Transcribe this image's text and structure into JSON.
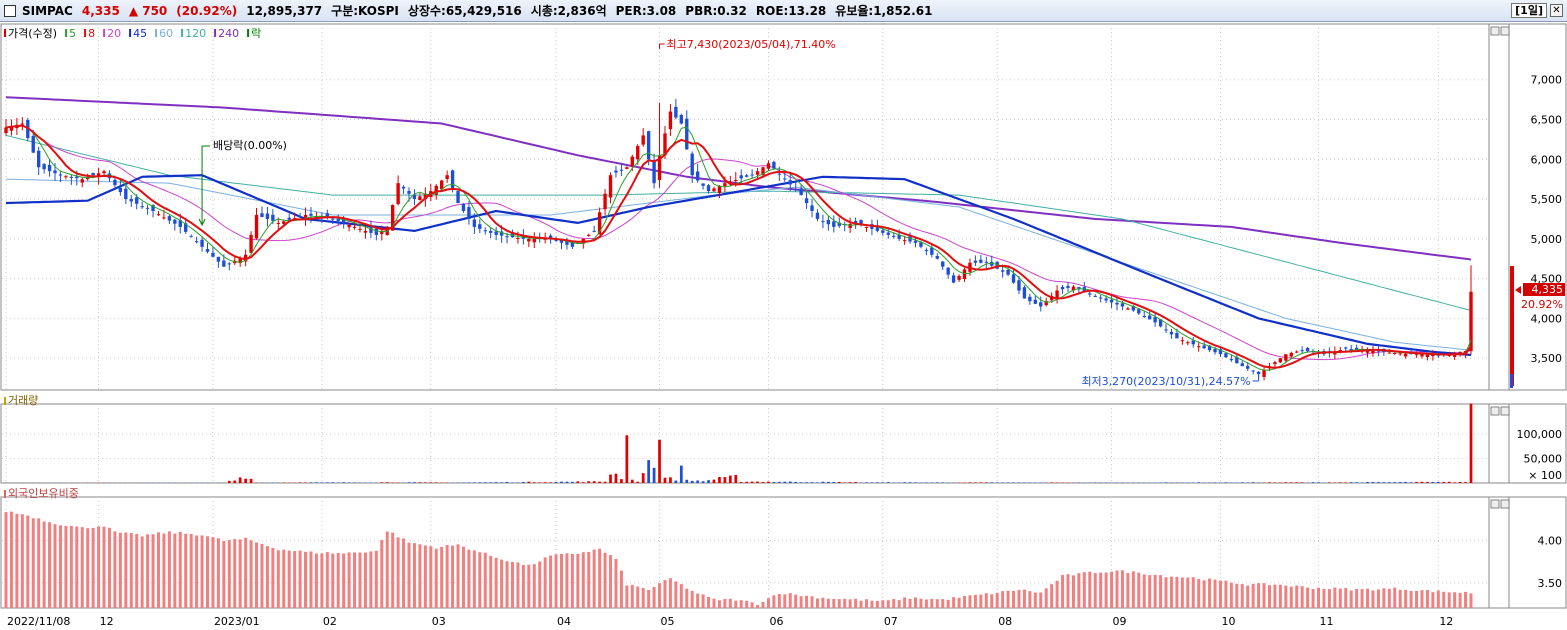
{
  "header": {
    "name": "SIMPAC",
    "price": "4,335",
    "change": "▲ 750",
    "change_pct": "(20.92%)",
    "volume": "12,895,377",
    "market": "구분:KOSPI",
    "shares": "상장수:65,429,516",
    "mcap": "시총:2,836억",
    "per": "PER:3.08",
    "pbr": "PBR:0.32",
    "roe": "ROE:13.28",
    "reserve": "유보율:1,852.61",
    "period": "[1일]"
  },
  "colors": {
    "up": "#e00000",
    "down": "#1c4fd6",
    "ma5": "#2aa02a",
    "ma8": "#e01010",
    "ma20": "#cc44cc",
    "ma45": "#1030c8",
    "ma60": "#7ab0e0",
    "ma120": "#40b0a0",
    "ma240": "#8030c0",
    "foreign_bar": "#f08080",
    "grid": "#d0d0d0"
  },
  "legend": {
    "price_label": "가격(수정)",
    "items": [
      {
        "label": "5",
        "color": "#2aa02a"
      },
      {
        "label": "8",
        "color": "#e01010"
      },
      {
        "label": "20",
        "color": "#cc44cc"
      },
      {
        "label": "45",
        "color": "#1030c8"
      },
      {
        "label": "60",
        "color": "#7ab0e0"
      },
      {
        "label": "120",
        "color": "#40b0a0"
      },
      {
        "label": "240",
        "color": "#8030c0"
      },
      {
        "label": "락",
        "color": "#008000"
      }
    ],
    "volume_label": "거래량",
    "foreign_label": "외국인보유비중"
  },
  "annotations": {
    "high": "최고7,430(2023/05/04),71.40%",
    "low": "최저3,270(2023/10/31),24.57%",
    "dividend": "배당락(0.00%)",
    "last_price": "4,335",
    "last_pct": "20.92%"
  },
  "chart_data": {
    "type": "candlestick",
    "price_axis": {
      "ticks": [
        "7,000",
        "6,500",
        "6,000",
        "5,500",
        "5,000",
        "4,500",
        "4,000",
        "3,500"
      ],
      "values": [
        7000,
        6500,
        6000,
        5500,
        5000,
        4500,
        4000,
        3500
      ],
      "range": [
        3100,
        7600
      ]
    },
    "volume_axis": {
      "ticks": [
        "100,000",
        "50,000",
        "× 100"
      ],
      "values": [
        1000,
        500,
        0
      ],
      "range": [
        0,
        1450
      ]
    },
    "foreign_axis": {
      "ticks": [
        "4.00",
        "3.50"
      ],
      "values": [
        4.0,
        3.5
      ],
      "range": [
        3.2,
        4.4
      ]
    },
    "x_ticks": [
      {
        "label": "2022/11/08",
        "i": 0
      },
      {
        "label": "12",
        "i": 17
      },
      {
        "label": "2023/01",
        "i": 38
      },
      {
        "label": "02",
        "i": 58
      },
      {
        "label": "03",
        "i": 78
      },
      {
        "label": "04",
        "i": 101
      },
      {
        "label": "05",
        "i": 120
      },
      {
        "label": "06",
        "i": 140
      },
      {
        "label": "07",
        "i": 161
      },
      {
        "label": "08",
        "i": 182
      },
      {
        "label": "09",
        "i": 203
      },
      {
        "label": "10",
        "i": 223
      },
      {
        "label": "11",
        "i": 241
      },
      {
        "label": "12",
        "i": 263
      }
    ],
    "price_anchors": [
      [
        0,
        6400
      ],
      [
        3,
        6450
      ],
      [
        6,
        5900
      ],
      [
        10,
        5800
      ],
      [
        14,
        5750
      ],
      [
        18,
        5850
      ],
      [
        22,
        5500
      ],
      [
        27,
        5350
      ],
      [
        32,
        5150
      ],
      [
        36,
        4900
      ],
      [
        40,
        4650
      ],
      [
        44,
        4800
      ],
      [
        46,
        5300
      ],
      [
        50,
        5200
      ],
      [
        55,
        5300
      ],
      [
        60,
        5250
      ],
      [
        64,
        5150
      ],
      [
        68,
        5050
      ],
      [
        70,
        5150
      ],
      [
        72,
        5700
      ],
      [
        75,
        5500
      ],
      [
        78,
        5600
      ],
      [
        81,
        5800
      ],
      [
        83,
        5450
      ],
      [
        86,
        5150
      ],
      [
        90,
        5050
      ],
      [
        95,
        5000
      ],
      [
        100,
        5000
      ],
      [
        104,
        4900
      ],
      [
        108,
        5100
      ],
      [
        111,
        5800
      ],
      [
        114,
        5900
      ],
      [
        117,
        6300
      ],
      [
        119,
        5700
      ],
      [
        120,
        6050
      ],
      [
        122,
        6600
      ],
      [
        124,
        6450
      ],
      [
        126,
        5800
      ],
      [
        129,
        5600
      ],
      [
        132,
        5700
      ],
      [
        137,
        5800
      ],
      [
        140,
        5950
      ],
      [
        143,
        5750
      ],
      [
        146,
        5550
      ],
      [
        149,
        5250
      ],
      [
        152,
        5150
      ],
      [
        156,
        5200
      ],
      [
        160,
        5100
      ],
      [
        164,
        5000
      ],
      [
        167,
        4950
      ],
      [
        171,
        4750
      ],
      [
        174,
        4450
      ],
      [
        177,
        4700
      ],
      [
        180,
        4700
      ],
      [
        184,
        4550
      ],
      [
        187,
        4250
      ],
      [
        190,
        4150
      ],
      [
        193,
        4350
      ],
      [
        196,
        4400
      ],
      [
        199,
        4300
      ],
      [
        203,
        4200
      ],
      [
        207,
        4100
      ],
      [
        211,
        3950
      ],
      [
        215,
        3750
      ],
      [
        219,
        3650
      ],
      [
        223,
        3550
      ],
      [
        227,
        3400
      ],
      [
        230,
        3300
      ],
      [
        232,
        3400
      ],
      [
        235,
        3550
      ],
      [
        238,
        3600
      ],
      [
        242,
        3550
      ],
      [
        246,
        3620
      ],
      [
        250,
        3600
      ],
      [
        254,
        3570
      ],
      [
        258,
        3550
      ],
      [
        261,
        3550
      ],
      [
        263,
        3530
      ],
      [
        267,
        3580
      ],
      [
        268,
        3590
      ],
      [
        269,
        4335
      ]
    ],
    "volume_anchors": [
      [
        0,
        3
      ],
      [
        40,
        4
      ],
      [
        44,
        160
      ],
      [
        46,
        8
      ],
      [
        72,
        14
      ],
      [
        81,
        8
      ],
      [
        110,
        30
      ],
      [
        111,
        250
      ],
      [
        113,
        130
      ],
      [
        114,
        1300
      ],
      [
        115,
        60
      ],
      [
        116,
        40
      ],
      [
        119,
        560
      ],
      [
        120,
        740
      ],
      [
        121,
        150
      ],
      [
        122,
        120
      ],
      [
        123,
        80
      ],
      [
        124,
        300
      ],
      [
        125,
        60
      ],
      [
        128,
        40
      ],
      [
        134,
        140
      ],
      [
        135,
        30
      ],
      [
        160,
        12
      ],
      [
        200,
        8
      ],
      [
        240,
        12
      ],
      [
        268,
        20
      ],
      [
        269,
        1330
      ]
    ],
    "foreign_anchors": [
      [
        0,
        4.35
      ],
      [
        4,
        4.3
      ],
      [
        8,
        4.22
      ],
      [
        14,
        4.15
      ],
      [
        18,
        4.18
      ],
      [
        20,
        4.1
      ],
      [
        25,
        4.06
      ],
      [
        30,
        4.1
      ],
      [
        36,
        4.07
      ],
      [
        40,
        4.0
      ],
      [
        44,
        4.02
      ],
      [
        50,
        3.9
      ],
      [
        56,
        3.86
      ],
      [
        62,
        3.85
      ],
      [
        68,
        3.88
      ],
      [
        70,
        4.12
      ],
      [
        74,
        3.98
      ],
      [
        79,
        3.92
      ],
      [
        83,
        3.95
      ],
      [
        90,
        3.8
      ],
      [
        96,
        3.7
      ],
      [
        100,
        3.82
      ],
      [
        105,
        3.85
      ],
      [
        109,
        3.9
      ],
      [
        112,
        3.78
      ],
      [
        114,
        3.48
      ],
      [
        118,
        3.42
      ],
      [
        122,
        3.55
      ],
      [
        126,
        3.4
      ],
      [
        130,
        3.3
      ],
      [
        134,
        3.3
      ],
      [
        138,
        3.25
      ],
      [
        142,
        3.38
      ],
      [
        146,
        3.35
      ],
      [
        150,
        3.32
      ],
      [
        156,
        3.3
      ],
      [
        161,
        3.28
      ],
      [
        166,
        3.32
      ],
      [
        172,
        3.3
      ],
      [
        178,
        3.35
      ],
      [
        182,
        3.38
      ],
      [
        186,
        3.42
      ],
      [
        190,
        3.38
      ],
      [
        194,
        3.58
      ],
      [
        199,
        3.62
      ],
      [
        204,
        3.64
      ],
      [
        208,
        3.62
      ],
      [
        213,
        3.58
      ],
      [
        218,
        3.56
      ],
      [
        223,
        3.52
      ],
      [
        228,
        3.48
      ],
      [
        233,
        3.48
      ],
      [
        240,
        3.44
      ],
      [
        248,
        3.42
      ],
      [
        255,
        3.43
      ],
      [
        262,
        3.4
      ],
      [
        269,
        3.38
      ]
    ],
    "ma240_anchors": [
      [
        0,
        6780
      ],
      [
        40,
        6650
      ],
      [
        80,
        6450
      ],
      [
        105,
        6050
      ],
      [
        125,
        5780
      ],
      [
        140,
        5650
      ],
      [
        170,
        5470
      ],
      [
        200,
        5250
      ],
      [
        225,
        5150
      ],
      [
        245,
        4950
      ],
      [
        269,
        4740
      ]
    ],
    "ma120_anchors": [
      [
        0,
        6300
      ],
      [
        30,
        5800
      ],
      [
        60,
        5550
      ],
      [
        110,
        5550
      ],
      [
        140,
        5600
      ],
      [
        175,
        5550
      ],
      [
        205,
        5250
      ],
      [
        230,
        4800
      ],
      [
        255,
        4350
      ],
      [
        269,
        4100
      ]
    ],
    "ma60_anchors": [
      [
        0,
        5750
      ],
      [
        30,
        5700
      ],
      [
        60,
        5300
      ],
      [
        100,
        5300
      ],
      [
        130,
        5550
      ],
      [
        145,
        5650
      ],
      [
        175,
        5400
      ],
      [
        205,
        4700
      ],
      [
        235,
        4000
      ],
      [
        255,
        3700
      ],
      [
        269,
        3600
      ]
    ],
    "ma45_anchors": [
      [
        0,
        5450
      ],
      [
        15,
        5480
      ],
      [
        25,
        5780
      ],
      [
        36,
        5800
      ],
      [
        55,
        5250
      ],
      [
        75,
        5100
      ],
      [
        90,
        5350
      ],
      [
        105,
        5200
      ],
      [
        118,
        5400
      ],
      [
        135,
        5600
      ],
      [
        150,
        5780
      ],
      [
        165,
        5750
      ],
      [
        185,
        5250
      ],
      [
        210,
        4550
      ],
      [
        230,
        4000
      ],
      [
        250,
        3680
      ],
      [
        262,
        3580
      ],
      [
        269,
        3540
      ]
    ]
  }
}
